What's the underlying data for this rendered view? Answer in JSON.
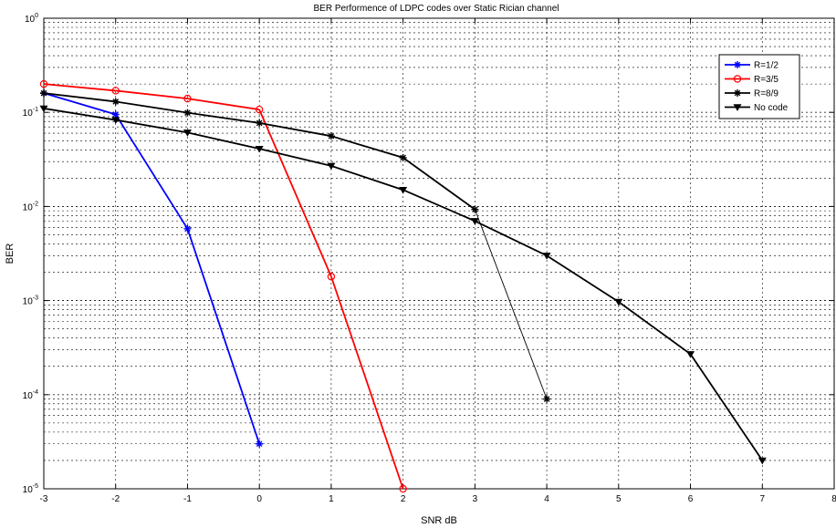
{
  "chart_data": {
    "type": "line",
    "title": "BER Performence of LDPC codes over Static Rician channel",
    "xlabel": "SNR dB",
    "ylabel": "BER",
    "xlim": [
      -3,
      8
    ],
    "ylim": [
      1e-05,
      1
    ],
    "yscale": "log",
    "grid": true,
    "legend_position": "top-right",
    "x_ticks": [
      -3,
      -2,
      -1,
      0,
      1,
      2,
      3,
      4,
      5,
      6,
      7,
      8
    ],
    "y_ticks": [
      {
        "value": 1,
        "base": "10",
        "exp": "0"
      },
      {
        "value": 0.1,
        "base": "10",
        "exp": "-1"
      },
      {
        "value": 0.01,
        "base": "10",
        "exp": "-2"
      },
      {
        "value": 0.001,
        "base": "10",
        "exp": "-3"
      },
      {
        "value": 0.0001,
        "base": "10",
        "exp": "-4"
      },
      {
        "value": 1e-05,
        "base": "10",
        "exp": "-5"
      }
    ],
    "series": [
      {
        "name": "R=1/2",
        "color": "#0000ff",
        "marker": "star",
        "x": [
          -3,
          -2,
          -1,
          0
        ],
        "y": [
          0.16,
          0.095,
          0.0058,
          3e-05
        ]
      },
      {
        "name": "R=3/5",
        "color": "#ff0000",
        "marker": "circle",
        "x": [
          -3,
          -2,
          -1,
          0,
          1,
          2
        ],
        "y": [
          0.2,
          0.17,
          0.14,
          0.107,
          0.0018,
          1e-05
        ]
      },
      {
        "name": "R=8/9",
        "color": "#000000",
        "marker": "star",
        "x": [
          -3,
          -2,
          -1,
          0,
          1,
          2,
          3,
          4
        ],
        "y": [
          0.16,
          0.13,
          0.099,
          0.077,
          0.056,
          0.033,
          0.0093,
          9e-05
        ]
      },
      {
        "name": "No code",
        "color": "#000000",
        "marker": "triangle-down",
        "x": [
          -3,
          -2,
          -1,
          0,
          1,
          2,
          3,
          4,
          5,
          6,
          7
        ],
        "y": [
          0.11,
          0.083,
          0.061,
          0.041,
          0.027,
          0.015,
          0.007,
          0.003,
          0.00097,
          0.00027,
          2e-05
        ]
      }
    ]
  }
}
